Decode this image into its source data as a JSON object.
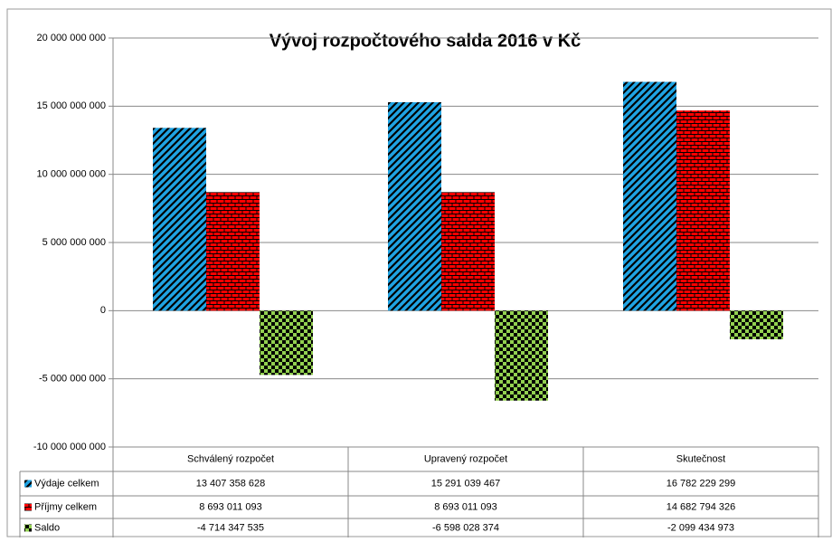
{
  "chart_data": {
    "type": "bar",
    "title": "Vývoj rozpočtového salda 2016 v Kč",
    "categories": [
      "Schválený rozpočet",
      "Upravený rozpočet",
      "Skutečnost"
    ],
    "series": [
      {
        "name": "Výdaje celkem",
        "color": "#1fa3e3",
        "values": [
          13407358628,
          15291039467,
          16782229299
        ],
        "value_labels": [
          "13 407 358 628",
          "15 291 039 467",
          "16 782 229 299"
        ]
      },
      {
        "name": "Příjmy celkem",
        "color": "#ff0000",
        "values": [
          8693011093,
          8693011093,
          14682794326
        ],
        "value_labels": [
          "8 693 011 093",
          "8 693 011 093",
          "14 682 794 326"
        ]
      },
      {
        "name": "Saldo",
        "color": "#92d050",
        "values": [
          -4714347535,
          -6598028374,
          -2099434973
        ],
        "value_labels": [
          "-4 714 347 535",
          "-6 598 028 374",
          "-2 099 434 973"
        ]
      }
    ],
    "ylim": [
      -10000000000,
      20000000000
    ],
    "yticks": [
      {
        "value": -10000000000,
        "label": "-10 000 000 000"
      },
      {
        "value": -5000000000,
        "label": "-5 000 000 000"
      },
      0,
      {
        "value": 5000000000,
        "label": "5 000 000 000"
      },
      {
        "value": 10000000000,
        "label": "10 000 000 000"
      },
      {
        "value": 15000000000,
        "label": "15 000 000 000"
      },
      {
        "value": 20000000000,
        "label": "20 000 000 000"
      }
    ],
    "grid": true
  }
}
